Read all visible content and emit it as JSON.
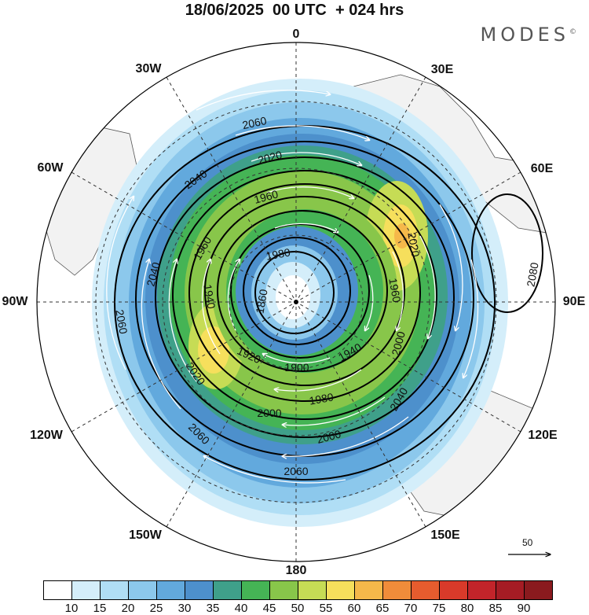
{
  "title": "18/06/2025  00 UTC  + 024 hrs",
  "brand": "MODES",
  "brand_mark": "©",
  "longitude_labels": {
    "n0": "0",
    "e30": "30E",
    "e60": "60E",
    "e90": "90E",
    "e120": "120E",
    "e150": "150E",
    "s180": "180",
    "w150": "150W",
    "w120": "120W",
    "w90": "90W",
    "w60": "60W",
    "w30": "30W"
  },
  "contour_labels": [
    "2060",
    "2040",
    "2020",
    "1960",
    "1960",
    "1940",
    "1980",
    "1860",
    "1920",
    "1900",
    "2000",
    "2020",
    "2040",
    "2060",
    "1940",
    "1980",
    "2000",
    "2040",
    "2020",
    "1960",
    "2000",
    "2060",
    "2060",
    "2080"
  ],
  "colorbar": {
    "ticks": [
      "10",
      "15",
      "20",
      "25",
      "30",
      "35",
      "40",
      "45",
      "50",
      "55",
      "60",
      "65",
      "70",
      "75",
      "80",
      "85",
      "90"
    ],
    "colors": [
      "#ffffff",
      "#d4eefa",
      "#b0def5",
      "#8cc8ec",
      "#62a9dd",
      "#4d90cc",
      "#3fa08a",
      "#45b455",
      "#88c64a",
      "#c6dc55",
      "#f6df5c",
      "#f5b84a",
      "#f08c3a",
      "#e65c2e",
      "#d93a2a",
      "#c2242a",
      "#a51c24",
      "#8a1a1e"
    ]
  },
  "reference_vector": "50",
  "colors": {
    "land": "#f2f2f2",
    "contour": "#000000",
    "streamline": "#ffffff"
  }
}
